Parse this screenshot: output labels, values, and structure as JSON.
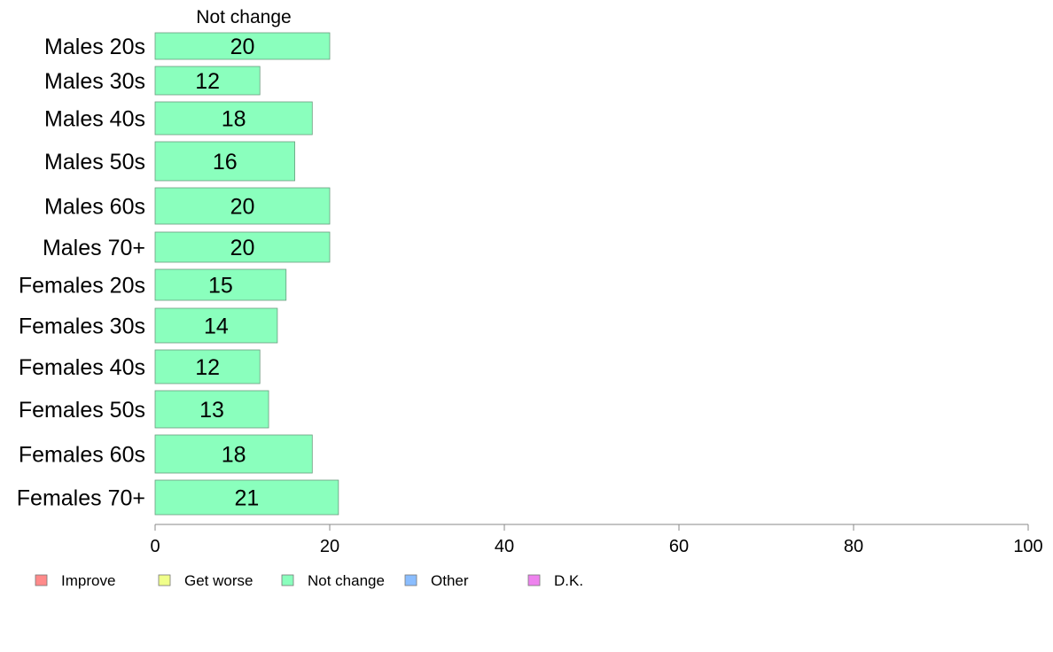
{
  "chart_data": {
    "type": "bar",
    "orientation": "horizontal",
    "stacked": true,
    "series_title": "Not change",
    "categories": [
      "Males 20s",
      "Males 30s",
      "Males 40s",
      "Males 50s",
      "Males 60s",
      "Males 70+",
      "Females 20s",
      "Females 30s",
      "Females 40s",
      "Females 50s",
      "Females 60s",
      "Females 70+"
    ],
    "series": [
      {
        "name": "Not change",
        "color": "#8affbd",
        "values": [
          20,
          12,
          18,
          16,
          20,
          20,
          15,
          14,
          12,
          13,
          18,
          21
        ]
      }
    ],
    "xlim": [
      0,
      100
    ],
    "xticks": [
      0,
      20,
      40,
      60,
      80,
      100
    ],
    "grid": false,
    "legend": {
      "position": "bottom-left",
      "entries": [
        {
          "label": "Improve",
          "color": "#ff8a8a"
        },
        {
          "label": "Get worse",
          "color": "#f0ff8a"
        },
        {
          "label": "Not change",
          "color": "#8affbd"
        },
        {
          "label": "Other",
          "color": "#8abdff"
        },
        {
          "label": "D.K.",
          "color": "#ee82ee"
        }
      ]
    }
  }
}
